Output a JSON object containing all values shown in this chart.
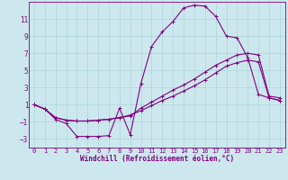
{
  "xlabel": "Windchill (Refroidissement éolien,°C)",
  "bg_color": "#cce8ee",
  "grid_color": "#aad4da",
  "line_color": "#800080",
  "spine_color": "#800080",
  "xlim": [
    -0.5,
    23.5
  ],
  "ylim": [
    -4,
    13
  ],
  "xticks": [
    0,
    1,
    2,
    3,
    4,
    5,
    6,
    7,
    8,
    9,
    10,
    11,
    12,
    13,
    14,
    15,
    16,
    17,
    18,
    19,
    20,
    21,
    22,
    23
  ],
  "yticks": [
    -3,
    -1,
    1,
    3,
    5,
    7,
    9,
    11
  ],
  "curve1_x": [
    0,
    1,
    2,
    3,
    4,
    5,
    6,
    7,
    8,
    9,
    10,
    11,
    12,
    13,
    14,
    15,
    16,
    17,
    18,
    19,
    20,
    21,
    22,
    23
  ],
  "curve1_y": [
    1.0,
    0.5,
    -0.7,
    -1.2,
    -2.7,
    -2.7,
    -2.7,
    -2.6,
    0.6,
    -2.5,
    3.5,
    7.8,
    9.5,
    10.7,
    12.3,
    12.6,
    12.5,
    11.3,
    9.0,
    8.8,
    6.5,
    2.2,
    1.8,
    1.5
  ],
  "curve2_x": [
    0,
    1,
    2,
    3,
    4,
    5,
    6,
    7,
    8,
    9,
    10,
    11,
    12,
    13,
    14,
    15,
    16,
    17,
    18,
    19,
    20,
    21,
    22,
    23
  ],
  "curve2_y": [
    1.0,
    0.5,
    -0.5,
    -0.8,
    -0.9,
    -0.9,
    -0.8,
    -0.7,
    -0.5,
    -0.3,
    0.6,
    1.3,
    2.0,
    2.7,
    3.3,
    4.0,
    4.8,
    5.6,
    6.2,
    6.8,
    7.0,
    6.8,
    2.0,
    1.8
  ],
  "curve3_x": [
    0,
    1,
    2,
    3,
    4,
    5,
    6,
    7,
    8,
    9,
    10,
    11,
    12,
    13,
    14,
    15,
    16,
    17,
    18,
    19,
    20,
    21,
    22,
    23
  ],
  "curve3_y": [
    1.0,
    0.5,
    -0.5,
    -0.8,
    -0.9,
    -0.9,
    -0.8,
    -0.7,
    -0.5,
    -0.2,
    0.3,
    0.9,
    1.5,
    2.0,
    2.6,
    3.2,
    3.9,
    4.7,
    5.5,
    5.9,
    6.2,
    6.0,
    1.8,
    1.5
  ]
}
